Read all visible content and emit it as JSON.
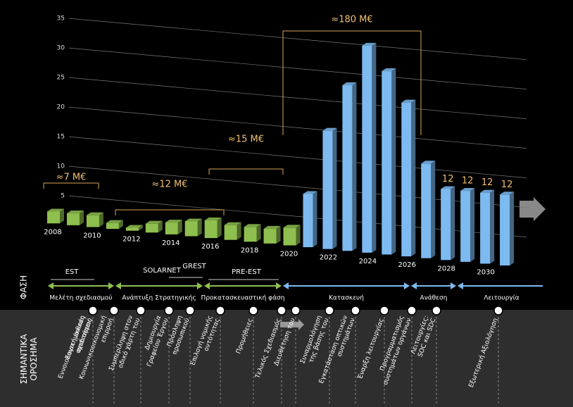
{
  "chart_data": {
    "type": "bar",
    "categories": [
      "2008",
      null,
      "2010",
      null,
      "2012",
      null,
      "2014",
      null,
      "2016",
      null,
      "2018",
      null,
      "2020",
      null,
      "2022",
      null,
      "2024",
      null,
      "2026",
      null,
      "2028",
      null,
      "2030",
      null
    ],
    "values": [
      2,
      2,
      2,
      1,
      0.5,
      1.5,
      2,
      2.5,
      3,
      2.5,
      2.5,
      2.5,
      3,
      9,
      20,
      28,
      35,
      31,
      26,
      16,
      12,
      12,
      12,
      12
    ],
    "value_labels": [
      null,
      null,
      null,
      null,
      null,
      null,
      null,
      null,
      null,
      null,
      null,
      null,
      null,
      null,
      null,
      null,
      null,
      null,
      null,
      null,
      "12",
      "12",
      "12",
      "12"
    ],
    "colors": [
      "#8fbf4f",
      "#8fbf4f",
      "#8fbf4f",
      "#8fbf4f",
      "#8fbf4f",
      "#8fbf4f",
      "#8fbf4f",
      "#8fbf4f",
      "#8fbf4f",
      "#8fbf4f",
      "#8fbf4f",
      "#8fbf4f",
      "#8fbf4f",
      "#7dbaf0",
      "#7dbaf0",
      "#7dbaf0",
      "#7dbaf0",
      "#7dbaf0",
      "#7dbaf0",
      "#7dbaf0",
      "#7dbaf0",
      "#7dbaf0",
      "#7dbaf0",
      "#7dbaf0"
    ],
    "ylim": [
      0,
      35
    ],
    "yticks": [
      5,
      10,
      15,
      20,
      25,
      30,
      35
    ],
    "grid": true,
    "annotations": [
      "≈7 M€",
      "≈12 M€",
      "≈15 M€",
      "≈180 M€"
    ]
  },
  "phases": {
    "title": "ΦΑΣΗ",
    "programs": [
      "EST",
      "SOLARNET",
      "GREST",
      "PRE-EST"
    ],
    "stages": [
      "Μελέτη σχεδιασμού",
      "Ανάπτυξη Στρατηγικής",
      "Προκατασκευαστική φάση",
      "Κατασκευή",
      "Ανάθεση",
      "Λειτουργία"
    ]
  },
  "milestones": {
    "title": [
      "ΣΗΜΑΝΤΙΚΑ",
      "ΟΡΟΣΗΜΑ"
    ],
    "items": [
      [
        "Επιστημονικές",
        "απαιτήσεις"
      ],
      [
        "Εννοιολογική έκθεση",
        "σχεδιασμού"
      ],
      [
        "Κοινωνικοοικονομική",
        "επιρροή"
      ],
      [
        "Συμπερίληψη στον",
        "οδικό χάρτη του"
      ],
      [
        "Δημιουργία",
        "Γραφείου Έργου"
      ],
      [
        "Πρόσληψη",
        "προσωπικού"
      ],
      [
        "Επιλογή νομικής",
        "οντότητας"
      ],
      [
        "Προμήθειες"
      ],
      [
        "Τελικός Σχεδιασμός"
      ],
      [
        "Διευθέτηση του"
      ],
      [
        "Συναρμολόγηση",
        "της βάσης του"
      ],
      [
        "Εγκατάσταση οπτικών",
        "συστημάτων"
      ],
      [
        "Έναρξη λειτουργίας"
      ],
      [
        "Προγραμματισμός",
        "συστημάτων οργάνων"
      ],
      [
        "Λειτουργίες:",
        "SOC και SDC"
      ],
      [
        "Εξωτερική Αξιολόγηση"
      ]
    ]
  }
}
